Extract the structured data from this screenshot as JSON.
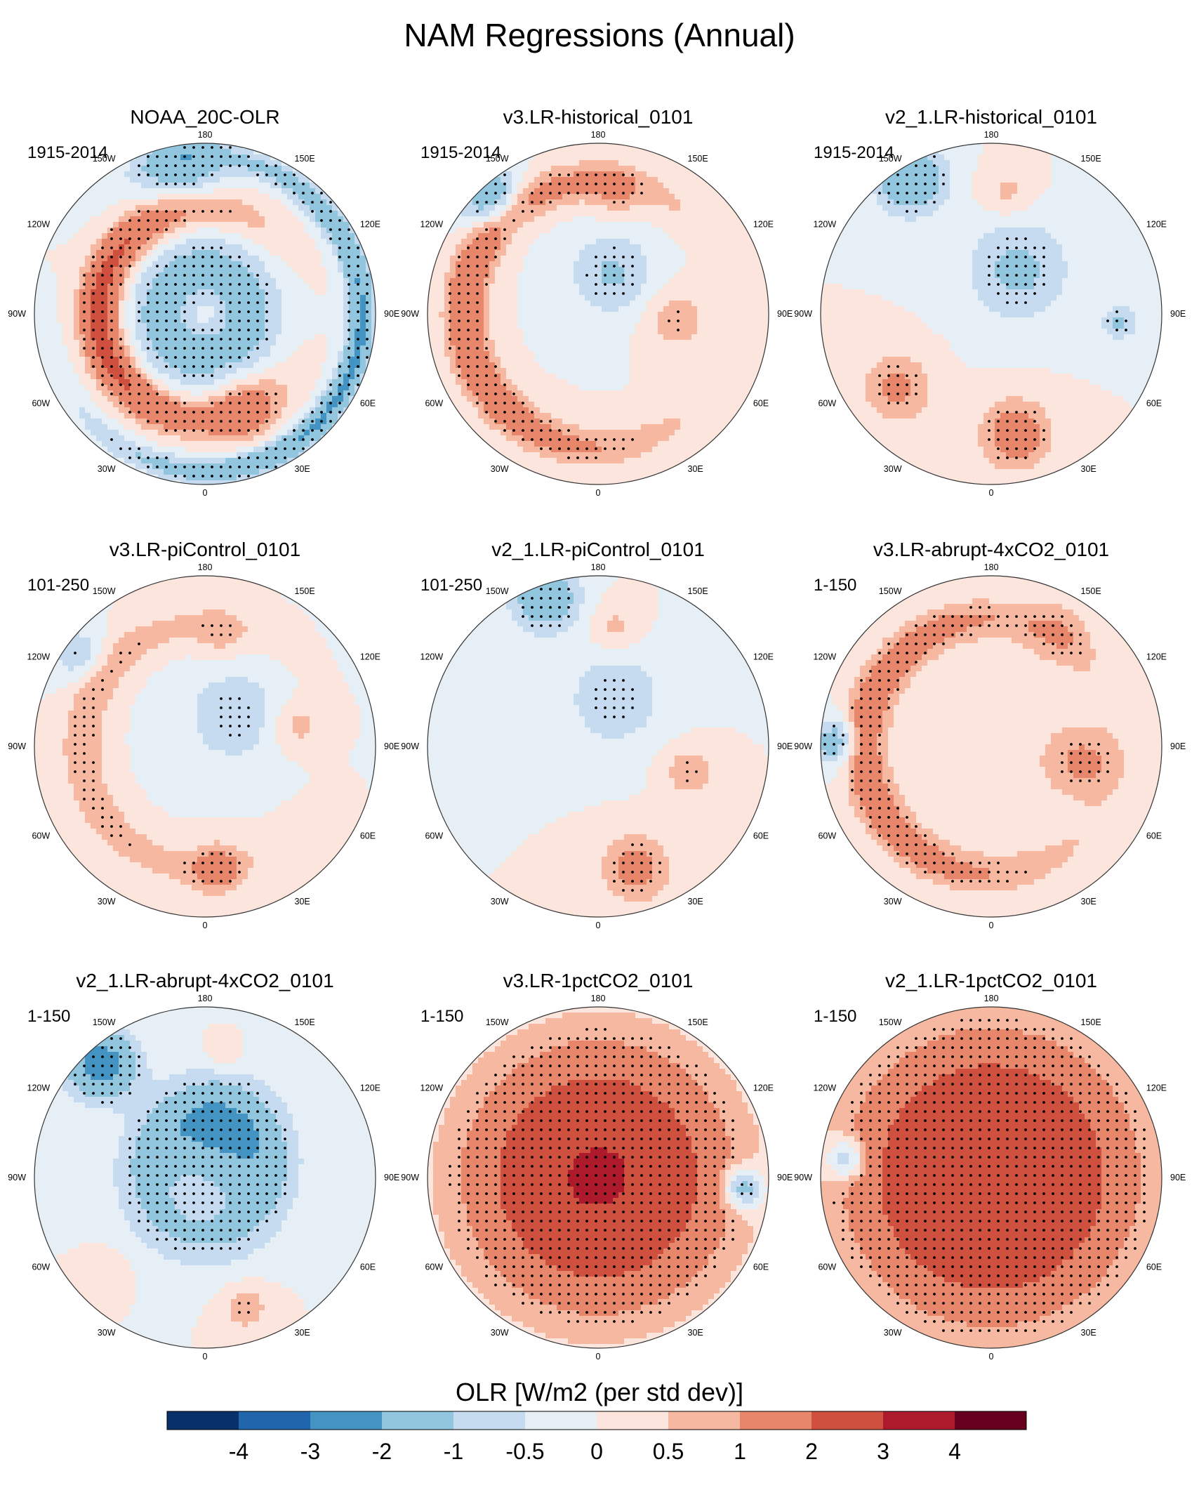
{
  "chart_data": {
    "type": "heatmap",
    "projection": "north-polar-stereographic",
    "title": "NAM Regressions (Annual)",
    "longitude_labels": [
      "180",
      "150E",
      "120E",
      "90E",
      "60E",
      "30E",
      "0",
      "30W",
      "60W",
      "90W",
      "120W",
      "150W"
    ],
    "panels": [
      {
        "title": "NOAA_20C-OLR",
        "period": "1915-2014",
        "pattern": "obs"
      },
      {
        "title": "v3.LR-historical_0101",
        "period": "1915-2014",
        "pattern": "hist"
      },
      {
        "title": "v2_1.LR-historical_0101",
        "period": "1915-2014",
        "pattern": "hist2"
      },
      {
        "title": "v3.LR-piControl_0101",
        "period": "101-250",
        "pattern": "pic"
      },
      {
        "title": "v2_1.LR-piControl_0101",
        "period": "101-250",
        "pattern": "pic2"
      },
      {
        "title": "v3.LR-abrupt-4xCO2_0101",
        "period": "1-150",
        "pattern": "abrupt"
      },
      {
        "title": "v2_1.LR-abrupt-4xCO2_0101",
        "period": "1-150",
        "pattern": "abrupt2"
      },
      {
        "title": "v3.LR-1pctCO2_0101",
        "period": "1-150",
        "pattern": "pct"
      },
      {
        "title": "v2_1.LR-1pctCO2_0101",
        "period": "1-150",
        "pattern": "pct2"
      }
    ],
    "colorbar": {
      "title": "OLR [W/m2 (per std dev)]",
      "tick_labels": [
        "-4",
        "-3",
        "-2",
        "-1",
        "-0.5",
        "0",
        "0.5",
        "1",
        "2",
        "3",
        "4"
      ],
      "levels": [
        -4,
        -3,
        -2,
        -1,
        -0.5,
        0,
        0.5,
        1,
        2,
        3,
        4
      ],
      "colors": [
        "#08306b",
        "#2166ac",
        "#4393c3",
        "#92c5de",
        "#c6dbef",
        "#e5eff5",
        "#fbe5dc",
        "#f6b8a0",
        "#e8866b",
        "#d0503f",
        "#ad1a2b",
        "#67001f"
      ]
    }
  }
}
